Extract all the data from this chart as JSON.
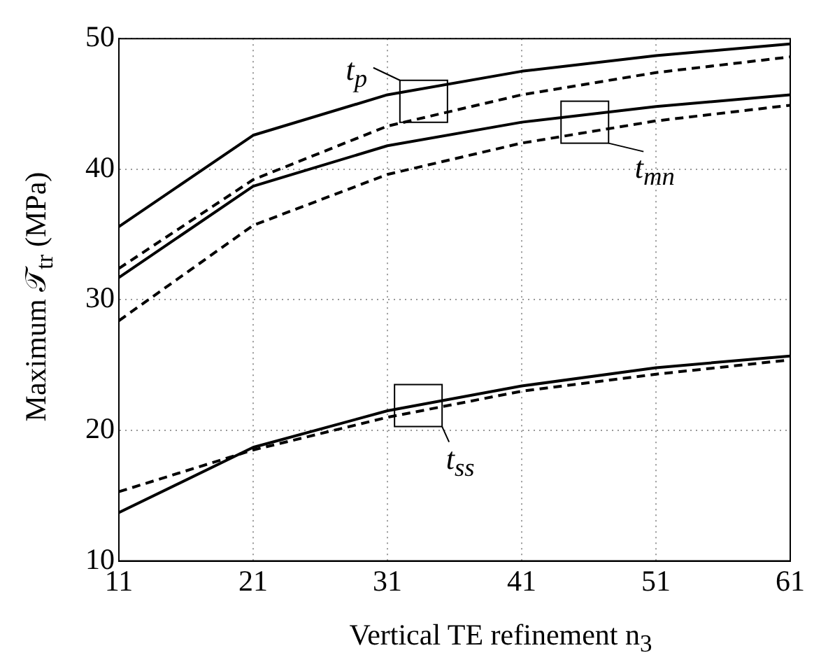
{
  "chart_data": {
    "type": "line",
    "xlabel": "Vertical TE refinement n$_{3}$",
    "ylabel": "Maximum 𝒯$_{tr}$  (MPa)",
    "x": [
      11,
      21,
      31,
      41,
      51,
      61
    ],
    "series": [
      {
        "color": "#000000",
        "line_style": "solid",
        "values": [
          35.6,
          42.6,
          45.7,
          47.5,
          48.7,
          49.6
        ]
      },
      {
        "color": "#000000",
        "line_style": "dashed",
        "values": [
          32.4,
          39.2,
          43.3,
          45.7,
          47.4,
          48.6
        ]
      },
      {
        "color": "#000000",
        "line_style": "solid",
        "values": [
          31.7,
          38.7,
          41.8,
          43.6,
          44.8,
          45.7
        ]
      },
      {
        "color": "#000000",
        "line_style": "dashed",
        "values": [
          28.4,
          35.7,
          39.6,
          42.0,
          43.7,
          44.9
        ]
      },
      {
        "color": "#000000",
        "line_style": "solid",
        "values": [
          13.7,
          18.7,
          21.5,
          23.4,
          24.8,
          25.7
        ]
      },
      {
        "color": "#000000",
        "line_style": "dashed",
        "values": [
          15.3,
          18.5,
          21.0,
          23.0,
          24.3,
          25.4
        ]
      }
    ],
    "annotations": [
      {
        "text": "t$_{p}$",
        "x": 33.7,
        "y": 45.2
      },
      {
        "text": "t$_{mn}$",
        "x": 45.7,
        "y": 43.6
      },
      {
        "text": "t$_{ss}$",
        "x": 33.3,
        "y": 21.9
      }
    ],
    "xlim": [
      11,
      61
    ],
    "xticks": [
      11,
      21,
      31,
      41,
      51,
      61
    ],
    "ylim": [
      10,
      50
    ],
    "yticks": [
      10,
      20,
      30,
      40,
      50
    ],
    "grid": true,
    "legend": false,
    "marker": "none"
  }
}
